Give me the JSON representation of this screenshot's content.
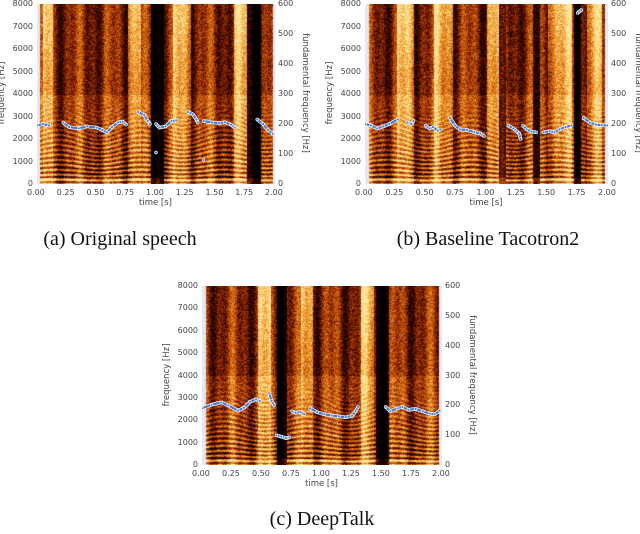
{
  "chart_data": [
    {
      "type": "heatmap",
      "caption": "(a) Original speech",
      "xlabel": "time [s]",
      "ylabel": "frequency [Hz]",
      "y2label": "fundamental frequency [Hz]",
      "xlim": [
        0,
        2
      ],
      "ylim": [
        0,
        8000
      ],
      "y2lim": [
        0,
        600
      ],
      "xticks": [
        "0.00",
        "0.25",
        "0.50",
        "0.75",
        "1.00",
        "1.25",
        "1.50",
        "1.75",
        "2.00"
      ],
      "yticks": [
        "0",
        "1000",
        "2000",
        "3000",
        "4000",
        "5000",
        "6000",
        "7000",
        "8000"
      ],
      "y2ticks": [
        "0",
        "100",
        "200",
        "300",
        "400",
        "500",
        "600"
      ],
      "colormap": [
        "#000000",
        "#5a0e00",
        "#c04a08",
        "#f0a030",
        "#ffe9a0"
      ],
      "f0_color": "#4a78c8",
      "bright_bands": [
        [
          0.05,
          0.13
        ],
        [
          0.76,
          0.87
        ],
        [
          1.14,
          1.29
        ],
        [
          1.65,
          1.76
        ]
      ],
      "dark_bands": [
        [
          0.95,
          1.06
        ],
        [
          1.76,
          1.88
        ]
      ],
      "f0": [
        [
          [
            0.0,
            195
          ],
          [
            0.05,
            200
          ],
          [
            0.1,
            195
          ]
        ],
        [
          [
            0.22,
            205
          ],
          [
            0.27,
            190
          ],
          [
            0.35,
            185
          ],
          [
            0.42,
            192
          ],
          [
            0.5,
            188
          ],
          [
            0.55,
            180
          ],
          [
            0.59,
            172
          ],
          [
            0.63,
            190
          ],
          [
            0.68,
            205
          ],
          [
            0.72,
            208
          ],
          [
            0.75,
            198
          ]
        ],
        [
          [
            0.85,
            240
          ],
          [
            0.9,
            230
          ],
          [
            0.93,
            210
          ],
          [
            0.95,
            200
          ]
        ],
        [
          [
            1.0,
            200
          ],
          [
            1.03,
            188
          ],
          [
            1.08,
            192
          ],
          [
            1.13,
            210
          ],
          [
            1.17,
            212
          ]
        ],
        [
          [
            1.27,
            240
          ],
          [
            1.31,
            232
          ],
          [
            1.34,
            215
          ],
          [
            1.35,
            205
          ]
        ],
        [
          [
            1.4,
            210
          ],
          [
            1.47,
            205
          ],
          [
            1.53,
            203
          ],
          [
            1.58,
            206
          ],
          [
            1.63,
            198
          ],
          [
            1.66,
            188
          ]
        ],
        [
          [
            1.85,
            215
          ],
          [
            1.9,
            200
          ],
          [
            1.94,
            180
          ],
          [
            1.98,
            168
          ]
        ],
        [
          [
            1.0,
            105
          ]
        ],
        [
          [
            1.4,
            80
          ]
        ]
      ]
    },
    {
      "type": "heatmap",
      "caption": "(b) Baseline Tacotron2",
      "xlabel": "time [s]",
      "ylabel": "frequency [Hz]",
      "y2label": "fundamental frequency [Hz]",
      "xlim": [
        0,
        2
      ],
      "ylim": [
        0,
        8000
      ],
      "y2lim": [
        0,
        600
      ],
      "xticks": [
        "0.00",
        "0.25",
        "0.50",
        "0.75",
        "1.00",
        "1.25",
        "1.50",
        "1.75",
        "2.00"
      ],
      "yticks": [
        "0",
        "1000",
        "2000",
        "3000",
        "4000",
        "5000",
        "6000",
        "7000",
        "8000"
      ],
      "y2ticks": [
        "0",
        "100",
        "200",
        "300",
        "400",
        "500",
        "600"
      ],
      "bright_bands": [
        [
          0.26,
          0.4
        ],
        [
          0.56,
          0.72
        ],
        [
          1.0,
          1.1
        ],
        [
          1.5,
          1.7
        ],
        [
          1.82,
          1.95
        ]
      ],
      "dark_bands": [
        [
          1.1,
          1.16
        ],
        [
          1.38,
          1.44
        ],
        [
          1.72,
          1.77
        ]
      ],
      "f0": [
        [
          [
            0.0,
            200
          ],
          [
            0.05,
            195
          ],
          [
            0.1,
            185
          ],
          [
            0.15,
            192
          ],
          [
            0.2,
            200
          ],
          [
            0.27,
            215
          ]
        ],
        [
          [
            0.35,
            205
          ],
          [
            0.38,
            200
          ],
          [
            0.4,
            210
          ]
        ],
        [
          [
            0.5,
            195
          ],
          [
            0.53,
            185
          ],
          [
            0.56,
            190
          ],
          [
            0.6,
            178
          ],
          [
            0.62,
            182
          ]
        ],
        [
          [
            0.7,
            220
          ],
          [
            0.74,
            195
          ],
          [
            0.78,
            182
          ],
          [
            0.84,
            180
          ],
          [
            0.9,
            173
          ],
          [
            0.95,
            168
          ],
          [
            0.98,
            160
          ]
        ],
        [
          [
            1.18,
            195
          ],
          [
            1.22,
            185
          ],
          [
            1.25,
            175
          ],
          [
            1.27,
            168
          ],
          [
            1.28,
            150
          ]
        ],
        [
          [
            1.3,
            195
          ],
          [
            1.33,
            182
          ],
          [
            1.37,
            175
          ],
          [
            1.41,
            172
          ]
        ],
        [
          [
            1.47,
            172
          ],
          [
            1.52,
            176
          ],
          [
            1.56,
            172
          ],
          [
            1.6,
            182
          ],
          [
            1.65,
            190
          ],
          [
            1.7,
            195
          ]
        ],
        [
          [
            1.75,
            570
          ],
          [
            1.78,
            580
          ]
        ],
        [
          [
            1.8,
            220
          ],
          [
            1.85,
            205
          ],
          [
            1.9,
            198
          ],
          [
            1.95,
            196
          ],
          [
            2.0,
            195
          ]
        ]
      ]
    },
    {
      "type": "heatmap",
      "caption": "(c) DeepTalk",
      "xlabel": "time [s]",
      "ylabel": "frequency [Hz]",
      "y2label": "fundamental frequency [Hz]",
      "xlim": [
        0,
        2
      ],
      "ylim": [
        0,
        8000
      ],
      "y2lim": [
        0,
        600
      ],
      "xticks": [
        "0.00",
        "0.25",
        "0.50",
        "0.75",
        "1.00",
        "1.25",
        "1.50",
        "1.75",
        "2.00"
      ],
      "yticks": [
        "0",
        "1000",
        "2000",
        "3000",
        "4000",
        "5000",
        "6000",
        "7000",
        "8000"
      ],
      "y2ticks": [
        "0",
        "100",
        "200",
        "300",
        "400",
        "500",
        "600"
      ],
      "bright_bands": [
        [
          0.46,
          0.57
        ],
        [
          0.82,
          0.92
        ],
        [
          1.32,
          1.43
        ]
      ],
      "dark_bands": [
        [
          0.62,
          0.7
        ],
        [
          1.45,
          1.55
        ]
      ],
      "f0": [
        [
          [
            0.0,
            190
          ],
          [
            0.08,
            202
          ],
          [
            0.16,
            210
          ],
          [
            0.22,
            200
          ],
          [
            0.3,
            182
          ],
          [
            0.35,
            192
          ],
          [
            0.4,
            212
          ],
          [
            0.45,
            220
          ],
          [
            0.48,
            215
          ]
        ],
        [
          [
            0.56,
            240
          ],
          [
            0.58,
            215
          ],
          [
            0.6,
            200
          ]
        ],
        [
          [
            0.62,
            100
          ],
          [
            0.66,
            95
          ],
          [
            0.7,
            90
          ],
          [
            0.73,
            93
          ]
        ],
        [
          [
            0.75,
            180
          ],
          [
            0.78,
            175
          ],
          [
            0.82,
            178
          ],
          [
            0.85,
            170
          ]
        ],
        [
          [
            0.9,
            190
          ],
          [
            0.96,
            177
          ],
          [
            1.02,
            170
          ],
          [
            1.08,
            166
          ],
          [
            1.14,
            163
          ],
          [
            1.2,
            160
          ],
          [
            1.25,
            165
          ],
          [
            1.28,
            180
          ],
          [
            1.3,
            195
          ]
        ],
        [
          [
            1.53,
            195
          ],
          [
            1.57,
            180
          ],
          [
            1.63,
            190
          ],
          [
            1.67,
            195
          ],
          [
            1.72,
            185
          ],
          [
            1.78,
            188
          ],
          [
            1.84,
            180
          ],
          [
            1.9,
            172
          ],
          [
            1.94,
            170
          ],
          [
            1.98,
            182
          ]
        ]
      ]
    }
  ]
}
